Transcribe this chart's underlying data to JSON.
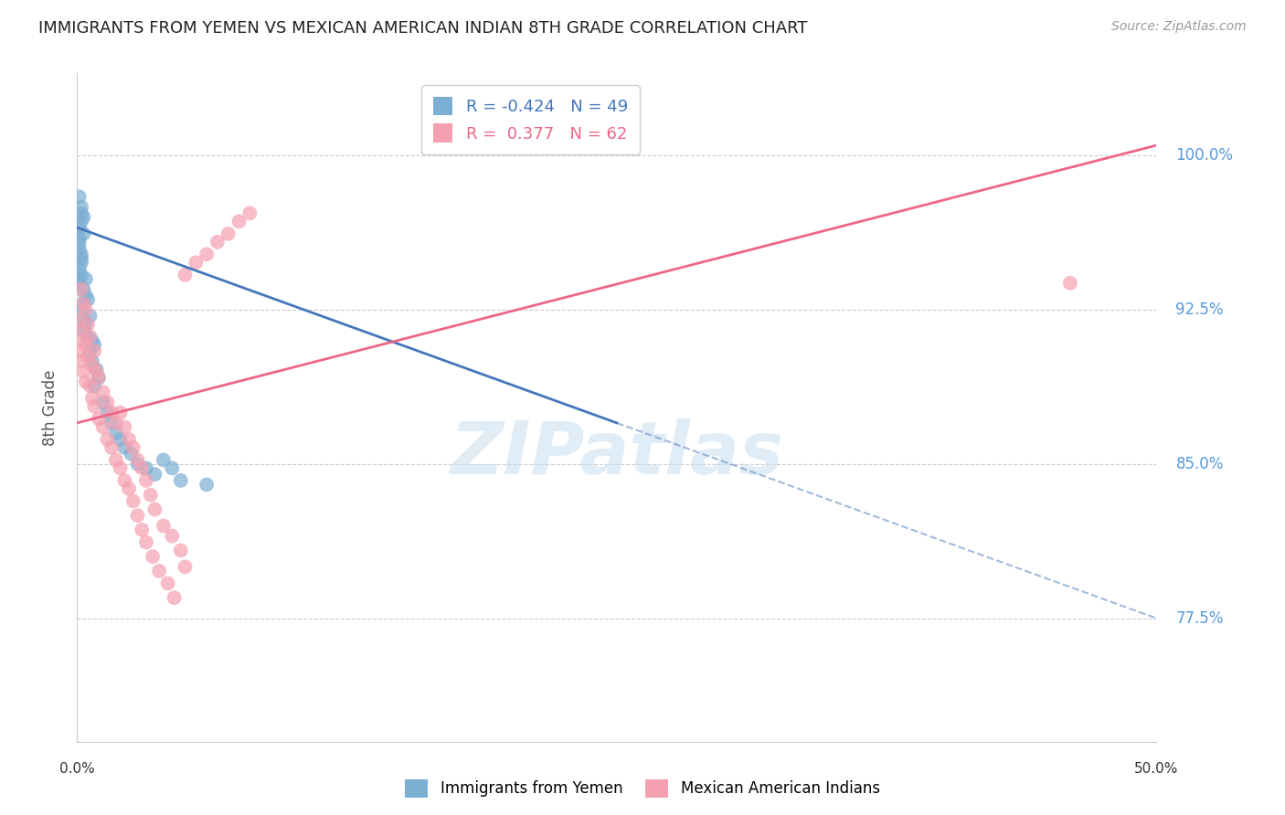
{
  "title": "IMMIGRANTS FROM YEMEN VS MEXICAN AMERICAN INDIAN 8TH GRADE CORRELATION CHART",
  "source": "Source: ZipAtlas.com",
  "ylabel": "8th Grade",
  "yticks": [
    0.775,
    0.85,
    0.925,
    1.0
  ],
  "ytick_labels": [
    "77.5%",
    "85.0%",
    "92.5%",
    "100.0%"
  ],
  "xmin": 0.0,
  "xmax": 0.5,
  "ymin": 0.715,
  "ymax": 1.04,
  "legend_blue_r": "R = -0.424",
  "legend_blue_n": "N = 49",
  "legend_pink_r": "R =  0.377",
  "legend_pink_n": "N = 62",
  "blue_color": "#7BAFD4",
  "pink_color": "#F4A0B0",
  "blue_line_color": "#4477BB",
  "pink_line_color": "#EE6688",
  "watermark": "ZIPatlas",
  "watermark_color": "#C8DDEF",
  "blue_scatter_x": [
    0.001,
    0.002,
    0.001,
    0.003,
    0.001,
    0.002,
    0.001,
    0.002,
    0.001,
    0.002,
    0.001,
    0.002,
    0.003,
    0.001,
    0.002,
    0.001,
    0.002,
    0.003,
    0.004,
    0.003,
    0.004,
    0.003,
    0.002,
    0.005,
    0.004,
    0.003,
    0.006,
    0.005,
    0.007,
    0.006,
    0.008,
    0.007,
    0.009,
    0.01,
    0.008,
    0.012,
    0.014,
    0.016,
    0.018,
    0.02,
    0.022,
    0.025,
    0.028,
    0.032,
    0.036,
    0.04,
    0.044,
    0.048,
    0.06
  ],
  "blue_scatter_y": [
    0.98,
    0.975,
    0.965,
    0.97,
    0.96,
    0.968,
    0.958,
    0.972,
    0.955,
    0.95,
    0.945,
    0.948,
    0.962,
    0.94,
    0.952,
    0.938,
    0.942,
    0.935,
    0.94,
    0.928,
    0.932,
    0.92,
    0.925,
    0.93,
    0.918,
    0.915,
    0.922,
    0.912,
    0.91,
    0.905,
    0.908,
    0.9,
    0.896,
    0.892,
    0.888,
    0.88,
    0.875,
    0.87,
    0.865,
    0.862,
    0.858,
    0.855,
    0.85,
    0.848,
    0.845,
    0.852,
    0.848,
    0.842,
    0.84
  ],
  "pink_scatter_x": [
    0.002,
    0.001,
    0.003,
    0.002,
    0.004,
    0.001,
    0.003,
    0.002,
    0.005,
    0.004,
    0.003,
    0.006,
    0.005,
    0.007,
    0.004,
    0.008,
    0.006,
    0.009,
    0.007,
    0.01,
    0.008,
    0.012,
    0.01,
    0.014,
    0.012,
    0.016,
    0.014,
    0.018,
    0.02,
    0.016,
    0.022,
    0.018,
    0.024,
    0.02,
    0.026,
    0.022,
    0.028,
    0.024,
    0.03,
    0.026,
    0.032,
    0.028,
    0.034,
    0.03,
    0.036,
    0.032,
    0.04,
    0.035,
    0.044,
    0.038,
    0.048,
    0.042,
    0.05,
    0.045,
    0.46,
    0.05,
    0.055,
    0.06,
    0.065,
    0.07,
    0.075,
    0.08
  ],
  "pink_scatter_y": [
    0.935,
    0.92,
    0.928,
    0.915,
    0.925,
    0.905,
    0.91,
    0.9,
    0.918,
    0.908,
    0.895,
    0.912,
    0.902,
    0.898,
    0.89,
    0.905,
    0.888,
    0.895,
    0.882,
    0.892,
    0.878,
    0.885,
    0.872,
    0.88,
    0.868,
    0.875,
    0.862,
    0.87,
    0.875,
    0.858,
    0.868,
    0.852,
    0.862,
    0.848,
    0.858,
    0.842,
    0.852,
    0.838,
    0.848,
    0.832,
    0.842,
    0.825,
    0.835,
    0.818,
    0.828,
    0.812,
    0.82,
    0.805,
    0.815,
    0.798,
    0.808,
    0.792,
    0.8,
    0.785,
    0.938,
    0.942,
    0.948,
    0.952,
    0.958,
    0.962,
    0.968,
    0.972
  ]
}
